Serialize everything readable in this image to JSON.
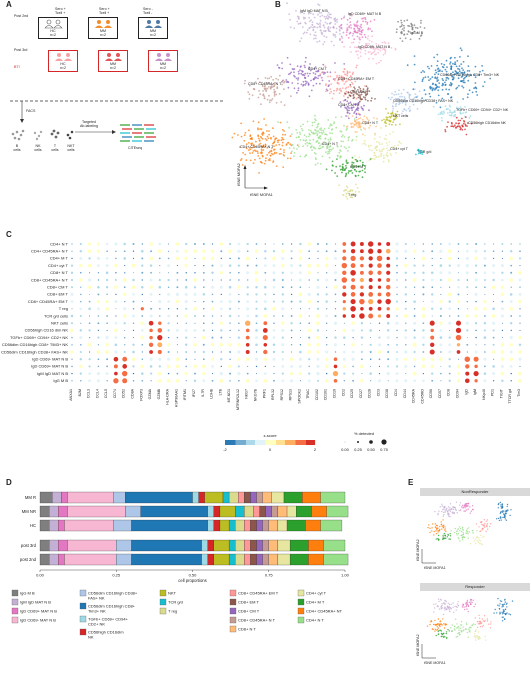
{
  "panels": {
    "A": "A",
    "B": "B",
    "C": "C",
    "D": "D",
    "E": "E"
  },
  "panelA": {
    "row_labels": [
      "Post 2nd",
      "Post 3rd"
    ],
    "bti_label": "BTI",
    "sero_cell": [
      "Sero +",
      "Tcell +"
    ],
    "sero_neg": [
      "Sero -",
      "Tcell -"
    ],
    "cohorts": [
      {
        "top": "HC",
        "n": "n=2",
        "bot": "HC",
        "bn": "n=2"
      },
      {
        "top": "MM",
        "n": "n=2",
        "bot": "MM",
        "bn": "n=2"
      },
      {
        "top": "MM",
        "n": "n=2",
        "bot": "MM",
        "bn": "n=2"
      }
    ],
    "facs": "FACS",
    "targeted": [
      "Targeted",
      "Ab-labeling"
    ],
    "cell_types": [
      "B cells",
      "NK cells",
      "T cells",
      "NKT cells"
    ],
    "citeseq": "CITEseq"
  },
  "panelB": {
    "xlabel": "tSNE MOFA1",
    "ylabel": "tSNE MOFA2",
    "labels": [
      {
        "t": "IgM IgD MAT N B",
        "x": 300,
        "y": 12
      },
      {
        "t": "IgD CD69+ MAT N B",
        "x": 348,
        "y": 15
      },
      {
        "t": "IgD CD69- MAT N B",
        "x": 358,
        "y": 48
      },
      {
        "t": "IgG M B",
        "x": 410,
        "y": 34
      },
      {
        "t": "CD4+ CM T",
        "x": 308,
        "y": 70
      },
      {
        "t": "CD8+ CD45RA+ N T",
        "x": 248,
        "y": 85
      },
      {
        "t": "CD8+ CD45RA+ EM T",
        "x": 338,
        "y": 80
      },
      {
        "t": "CD8+ EM T",
        "x": 350,
        "y": 93
      },
      {
        "t": "CD8+ CM T",
        "x": 338,
        "y": 106
      },
      {
        "t": "CD66dim CD16high CD8+ Tim3+ NK",
        "x": 440,
        "y": 76
      },
      {
        "t": "CD66dim CD16high CD38+ FAS+ NK",
        "x": 393,
        "y": 102
      },
      {
        "t": "NKT cells",
        "x": 393,
        "y": 117
      },
      {
        "t": "TGFb+ CD69+ CD94+ CD2+ NK",
        "x": 456,
        "y": 111
      },
      {
        "t": "CD56high CD16dim NK",
        "x": 468,
        "y": 124
      },
      {
        "t": "CD8+ N T",
        "x": 362,
        "y": 124
      },
      {
        "t": "CD4+ CD45RA+ N T",
        "x": 240,
        "y": 148
      },
      {
        "t": "CD4+ N T",
        "x": 322,
        "y": 145
      },
      {
        "t": "CD4+ cyt T",
        "x": 390,
        "y": 150
      },
      {
        "t": "TCR g/d",
        "x": 418,
        "y": 153
      },
      {
        "t": "CD4+ M T",
        "x": 350,
        "y": 168
      },
      {
        "t": "T reg",
        "x": 348,
        "y": 196
      }
    ]
  },
  "panelC": {
    "rows": [
      "CD4+ N T",
      "CD4+ CD45RA+ N T",
      "CD4+ M T",
      "CD4+ cyt T",
      "CD8+ N T",
      "CD8+ CD45RA+ N T",
      "CD8+ CM T",
      "CD8+ EM T",
      "CD8+ CD45RA+ EM T",
      "T reg",
      "TCR g/d cells",
      "NKT cells",
      "CD56high CD16 dim NK",
      "TGFb+ CD69+ CD94+ CD2+ NK",
      "CD56dim CD16high CD8+ TIM3+ NK",
      "CD56dim CD16high CD38+ FAS+ NK",
      "IgD CD69- MAT N B",
      "IgD CD69+ MAT N B",
      "IgM IgD MAT N B",
      "IgG M B"
    ],
    "genes": [
      "ANXA1",
      "B2M",
      "CCL3",
      "CCL4",
      "CCL5",
      "CD74",
      "CD52",
      "CD8A",
      "FOXP3",
      "GZMA",
      "GZMB",
      "HLA-DRA",
      "HSP90AA1",
      "IFITM1",
      "IFI27",
      "IL7R",
      "LDHB",
      "LTB",
      "MT-ND1",
      "MTRNR2L12",
      "NKG7",
      "NKG7B",
      "PRF1",
      "RPL32",
      "RPS12",
      "RPS13",
      "SPOCK2",
      "TRAC",
      "CD102",
      "CD161",
      "CD19",
      "CD2",
      "CD25",
      "CD27",
      "CD28",
      "CD3",
      "CD38",
      "CD4",
      "CD44",
      "CD45RA",
      "CD45RO",
      "CD56",
      "CD57",
      "CD8",
      "CD94",
      "IgD",
      "IgM",
      "NKp46",
      "PD1",
      "TIGIT",
      "TTCR gd",
      "Tim3"
    ],
    "zscore_label": "z-score",
    "zscore_ticks": [
      "-2",
      "0",
      "2"
    ],
    "pct_label": "% detected",
    "pct_ticks": [
      "0.00",
      "0.25",
      "0.50",
      "0.75"
    ]
  },
  "panelD": {
    "rows": [
      "MM R",
      "MM NR",
      "HC",
      "post 3rd",
      "post 2nd"
    ],
    "xlabel": "cell proportions",
    "xticks": [
      "0.00",
      "0.25",
      "0.50",
      "0.75",
      "1.00"
    ],
    "legend": [
      {
        "t": "IgG M B",
        "c": "#7f7f7f"
      },
      {
        "t": "IgM IgD MAT N B",
        "c": "#c5b0d5"
      },
      {
        "t": "IgD CD69+ MAT N B",
        "c": "#e377c2"
      },
      {
        "t": "IgD CD69- MAT N B",
        "c": "#f7b6d2"
      },
      {
        "t": "CD56dim CD16high CD38+ FAS+ NK",
        "c": "#aec7e8"
      },
      {
        "t": "CD56dim CD16high CD8+ Tim3+ NK",
        "c": "#1f77b4"
      },
      {
        "t": "TGFb+ CD69+ CD94+ CD2+ NK",
        "c": "#9edae5"
      },
      {
        "t": "CD56high CD16dim NK",
        "c": "#d62728"
      },
      {
        "t": "NKT",
        "c": "#bcbd22"
      },
      {
        "t": "TCR g/d",
        "c": "#17becf"
      },
      {
        "t": "T reg",
        "c": "#dbdb8d"
      },
      {
        "t": "CD8+ CD45RA+ EM T",
        "c": "#ff9896"
      },
      {
        "t": "CD8+ EM T",
        "c": "#8c564b"
      },
      {
        "t": "CD8+ CM T",
        "c": "#9467bd"
      },
      {
        "t": "CD8+ CD45RA+ N T",
        "c": "#c49c94"
      },
      {
        "t": "CD8+ N T",
        "c": "#ffbb78"
      },
      {
        "t": "CD4+ cyt T",
        "c": "#e6e6a0"
      },
      {
        "t": "CD4+ M T",
        "c": "#2ca02c"
      },
      {
        "t": "CD4+ CD45RA+ NT",
        "c": "#ff7f0e"
      },
      {
        "t": "CD4+ N T",
        "c": "#98df8a"
      }
    ]
  },
  "panelE": {
    "titles": [
      "NonResponder",
      "Responder"
    ],
    "xlabel": "tSNE MOFA1",
    "ylabel": "tSNE MOFA2"
  },
  "chart_data": {
    "type": "bar",
    "categories": [
      "MM R",
      "MM NR",
      "HC",
      "post 3rd",
      "post 2nd"
    ],
    "series": [
      {
        "name": "IgG M B",
        "values": [
          0.04,
          0.03,
          0.03,
          0.03,
          0.03
        ]
      },
      {
        "name": "IgM IgD MAT N B",
        "values": [
          0.03,
          0.03,
          0.03,
          0.03,
          0.03
        ]
      },
      {
        "name": "IgD CD69+ MAT N B",
        "values": [
          0.02,
          0.03,
          0.02,
          0.03,
          0.02
        ]
      },
      {
        "name": "IgD CD69- MAT N B",
        "values": [
          0.15,
          0.19,
          0.16,
          0.16,
          0.17
        ]
      },
      {
        "name": "CD56dim CD16high CD38+ FAS+ NK",
        "values": [
          0.04,
          0.05,
          0.06,
          0.05,
          0.05
        ]
      },
      {
        "name": "CD56dim CD16high CD8+ Tim3+ NK",
        "values": [
          0.22,
          0.22,
          0.25,
          0.23,
          0.23
        ]
      },
      {
        "name": "TGFb+ CD69+ CD94+ CD2+ NK",
        "values": [
          0.02,
          0.02,
          0.02,
          0.02,
          0.02
        ]
      },
      {
        "name": "CD56high CD16dim NK",
        "values": [
          0.02,
          0.02,
          0.02,
          0.02,
          0.02
        ]
      },
      {
        "name": "NKT",
        "values": [
          0.06,
          0.05,
          0.03,
          0.05,
          0.05
        ]
      },
      {
        "name": "TCR g/d",
        "values": [
          0.02,
          0.03,
          0.02,
          0.02,
          0.02
        ]
      },
      {
        "name": "T reg",
        "values": [
          0.03,
          0.03,
          0.03,
          0.03,
          0.03
        ]
      },
      {
        "name": "CD8+ CD45RA+ EM T",
        "values": [
          0.02,
          0.02,
          0.02,
          0.02,
          0.02
        ]
      },
      {
        "name": "CD8+ EM T",
        "values": [
          0.02,
          0.02,
          0.02,
          0.02,
          0.02
        ]
      },
      {
        "name": "CD8+ CM T",
        "values": [
          0.02,
          0.02,
          0.02,
          0.02,
          0.02
        ]
      },
      {
        "name": "CD8+ CD45RA+ N T",
        "values": [
          0.02,
          0.02,
          0.02,
          0.02,
          0.02
        ]
      },
      {
        "name": "CD8+ N T",
        "values": [
          0.03,
          0.03,
          0.03,
          0.03,
          0.03
        ]
      },
      {
        "name": "CD4+ cyt T",
        "values": [
          0.04,
          0.03,
          0.03,
          0.04,
          0.04
        ]
      },
      {
        "name": "CD4+ M T",
        "values": [
          0.06,
          0.05,
          0.06,
          0.06,
          0.06
        ]
      },
      {
        "name": "CD4+ CD45RA+ NT",
        "values": [
          0.06,
          0.05,
          0.05,
          0.05,
          0.05
        ]
      },
      {
        "name": "CD4+ N T",
        "values": [
          0.08,
          0.07,
          0.07,
          0.07,
          0.08
        ]
      }
    ],
    "xlabel": "cell proportions",
    "ylabel": "",
    "xlim": [
      0,
      1
    ]
  }
}
